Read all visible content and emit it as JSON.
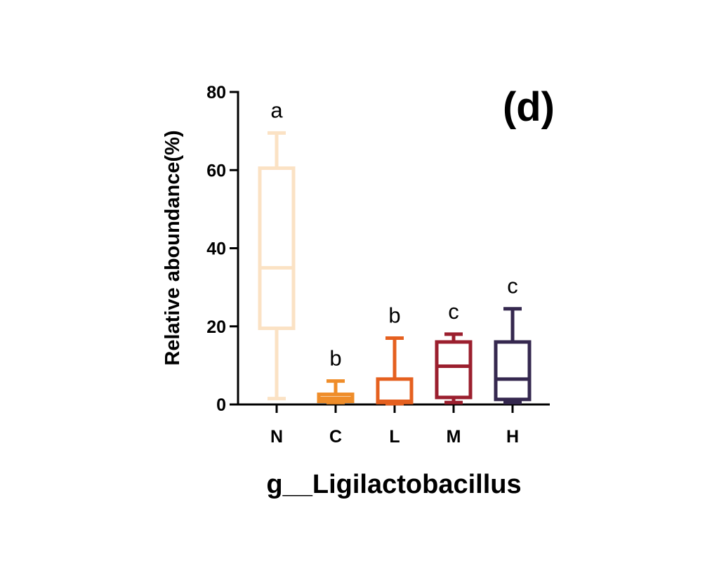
{
  "chart_data": {
    "type": "box",
    "panel_label": "(d)",
    "xlabel": "g__Ligilactobacillus",
    "ylabel": "Relative aboundance(%)",
    "ylim": [
      0,
      80
    ],
    "yticks": [
      0,
      20,
      40,
      60,
      80
    ],
    "grid": false,
    "categories": [
      "N",
      "C",
      "L",
      "M",
      "H"
    ],
    "boxes": [
      {
        "category": "N",
        "min": 1.5,
        "q1": 19.5,
        "median": 35,
        "q3": 60.5,
        "max": 69.5,
        "letter": "a",
        "color": "#fbe2c4"
      },
      {
        "category": "C",
        "min": 0.5,
        "q1": 0.8,
        "median": 1.6,
        "q3": 2.6,
        "max": 6.0,
        "letter": "b",
        "color": "#ef8d2a"
      },
      {
        "category": "L",
        "min": 0.2,
        "q1": 0.5,
        "median": 0.8,
        "q3": 6.5,
        "max": 17.0,
        "letter": "b",
        "color": "#e5601f"
      },
      {
        "category": "M",
        "min": 0.5,
        "q1": 1.8,
        "median": 9.8,
        "q3": 16.0,
        "max": 18.0,
        "letter": "c",
        "color": "#9b1f2e"
      },
      {
        "category": "H",
        "min": 0.5,
        "q1": 1.3,
        "median": 6.5,
        "q3": 16.0,
        "max": 24.5,
        "letter": "c",
        "color": "#35284f"
      }
    ]
  }
}
